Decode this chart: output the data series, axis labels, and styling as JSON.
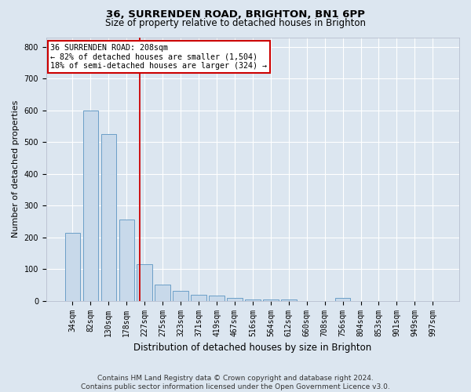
{
  "title_line1": "36, SURRENDEN ROAD, BRIGHTON, BN1 6PP",
  "title_line2": "Size of property relative to detached houses in Brighton",
  "xlabel": "Distribution of detached houses by size in Brighton",
  "ylabel": "Number of detached properties",
  "categories": [
    "34sqm",
    "82sqm",
    "130sqm",
    "178sqm",
    "227sqm",
    "275sqm",
    "323sqm",
    "371sqm",
    "419sqm",
    "467sqm",
    "516sqm",
    "564sqm",
    "612sqm",
    "660sqm",
    "708sqm",
    "756sqm",
    "804sqm",
    "853sqm",
    "901sqm",
    "949sqm",
    "997sqm"
  ],
  "values": [
    215,
    600,
    525,
    255,
    115,
    52,
    32,
    20,
    17,
    10,
    5,
    5,
    5,
    0,
    0,
    10,
    0,
    0,
    0,
    0,
    0
  ],
  "bar_color": "#c8d9ea",
  "bar_edge_color": "#6b9ec7",
  "annotation_line1": "36 SURRENDEN ROAD: 208sqm",
  "annotation_line2": "← 82% of detached houses are smaller (1,504)",
  "annotation_line3": "18% of semi-detached houses are larger (324) →",
  "annotation_box_facecolor": "#ffffff",
  "annotation_box_edgecolor": "#cc0000",
  "vline_color": "#cc0000",
  "vline_x_index": 3.72,
  "ylim": [
    0,
    830
  ],
  "yticks": [
    0,
    100,
    200,
    300,
    400,
    500,
    600,
    700,
    800
  ],
  "footer_line1": "Contains HM Land Registry data © Crown copyright and database right 2024.",
  "footer_line2": "Contains public sector information licensed under the Open Government Licence v3.0.",
  "fig_bg_color": "#dce6f0",
  "plot_bg_color": "#dce6f0",
  "grid_color": "#ffffff",
  "title1_fontsize": 9.5,
  "title2_fontsize": 8.5,
  "tick_fontsize": 7,
  "ylabel_fontsize": 8,
  "xlabel_fontsize": 8.5,
  "annot_fontsize": 7.2,
  "footer_fontsize": 6.5
}
